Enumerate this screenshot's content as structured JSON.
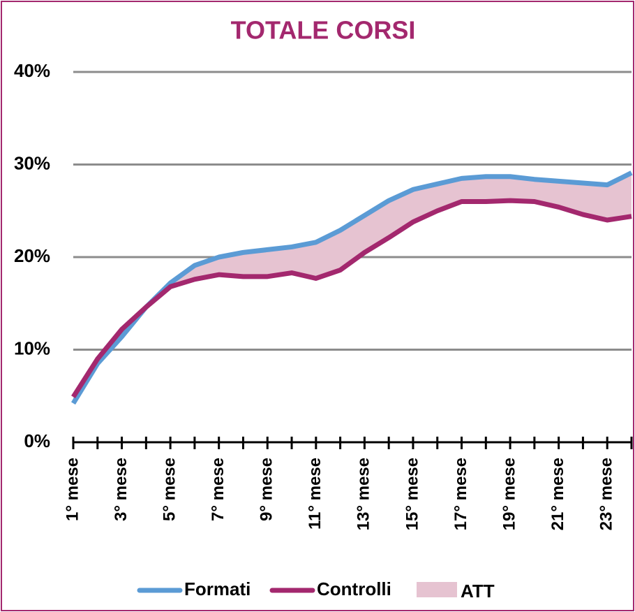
{
  "chart_data": {
    "type": "line",
    "title": "TOTALE CORSI",
    "categories": [
      "1° mese",
      null,
      "3° mese",
      null,
      "5° mese",
      null,
      "7° mese",
      null,
      "9° mese",
      null,
      "11° mese",
      null,
      "13° mese",
      null,
      "15° mese",
      null,
      "17° mese",
      null,
      "19° mese",
      null,
      "21° mese",
      null,
      "23° mese",
      null
    ],
    "series": [
      {
        "name": "Formati",
        "color": "#5b9bd5",
        "values": [
          4.2,
          8.5,
          11.4,
          14.6,
          17.2,
          19.1,
          20.0,
          20.5,
          20.8,
          21.1,
          21.6,
          22.9,
          24.5,
          26.1,
          27.3,
          27.9,
          28.5,
          28.7,
          28.7,
          28.4,
          28.2,
          28.0,
          27.8,
          29.1
        ]
      },
      {
        "name": "Controlli",
        "color": "#a3286e",
        "values": [
          4.9,
          9.0,
          12.2,
          14.6,
          16.8,
          17.6,
          18.1,
          17.9,
          17.9,
          18.3,
          17.7,
          18.6,
          20.5,
          22.1,
          23.8,
          25.0,
          26.0,
          26.0,
          26.1,
          26.0,
          25.4,
          24.6,
          24.0,
          24.4
        ]
      }
    ],
    "area": {
      "name": "ATT",
      "color": "#e6c3d1"
    },
    "ylim": [
      0,
      40
    ],
    "yticks": [
      {
        "value": 0,
        "label": "0%"
      },
      {
        "value": 10,
        "label": "10%"
      },
      {
        "value": 20,
        "label": "20%"
      },
      {
        "value": 30,
        "label": "30%"
      },
      {
        "value": 40,
        "label": "40%"
      }
    ],
    "grid": true
  }
}
